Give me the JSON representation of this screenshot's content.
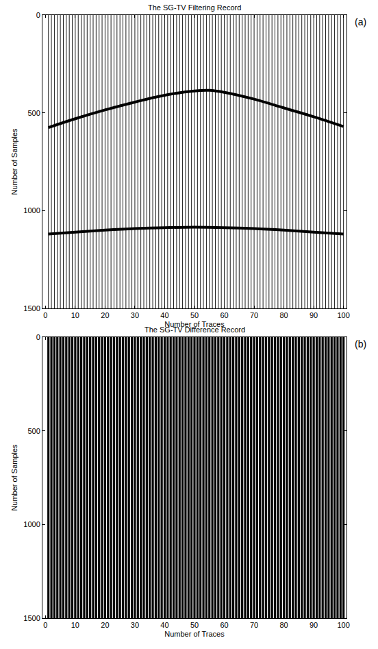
{
  "chart_data": [
    {
      "type": "wiggle",
      "title": "The SG-TV Filtering Record",
      "panel": "(a)",
      "x_label": "Number of Traces",
      "y_label": "Number of Samples",
      "xlim": [
        -1,
        101
      ],
      "xticks": [
        0,
        10,
        20,
        30,
        40,
        50,
        60,
        70,
        80,
        90,
        100
      ],
      "ylim": [
        1500,
        0
      ],
      "yticks": [
        0,
        500,
        1000,
        1500
      ],
      "color": "#000000",
      "traces": [
        1,
        2,
        3,
        4,
        5,
        6,
        7,
        8,
        9,
        10,
        11,
        12,
        13,
        14,
        15,
        16,
        17,
        18,
        19,
        20,
        21,
        22,
        23,
        24,
        25,
        26,
        27,
        28,
        29,
        30,
        31,
        32,
        33,
        34,
        35,
        36,
        37,
        38,
        39,
        40,
        41,
        42,
        43,
        44,
        45,
        46,
        47,
        48,
        49,
        50,
        51,
        52,
        53,
        54,
        55,
        56,
        57,
        58,
        59,
        60,
        61,
        62,
        63,
        64,
        65,
        66,
        67,
        68,
        69,
        70,
        71,
        72,
        73,
        74,
        75,
        76,
        77,
        78,
        79,
        80,
        81,
        82,
        83,
        84,
        85,
        86,
        87,
        88,
        89,
        90,
        91,
        92,
        93,
        94,
        95,
        96,
        97,
        98,
        99,
        100
      ],
      "events": [
        {
          "x": [
            1,
            10,
            20,
            30,
            40,
            50,
            55,
            60,
            70,
            80,
            90,
            100
          ],
          "values": [
            575,
            530,
            485,
            445,
            410,
            388,
            385,
            395,
            430,
            475,
            520,
            570
          ]
        },
        {
          "x": [
            1,
            10,
            20,
            30,
            40,
            50,
            60,
            70,
            80,
            90,
            100
          ],
          "values": [
            1120,
            1110,
            1100,
            1092,
            1087,
            1085,
            1087,
            1092,
            1100,
            1110,
            1120
          ]
        }
      ]
    },
    {
      "type": "wiggle",
      "title": "The SG-TV Difference Record",
      "panel": "(b)",
      "x_label": "Number of Traces",
      "y_label": "Number of Samples",
      "xlim": [
        -1,
        101
      ],
      "xticks": [
        0,
        10,
        20,
        30,
        40,
        50,
        60,
        70,
        80,
        90,
        100
      ],
      "ylim": [
        1500,
        0
      ],
      "yticks": [
        0,
        500,
        1000,
        1500
      ],
      "color": "#000000",
      "traces": [
        1,
        2,
        3,
        4,
        5,
        6,
        7,
        8,
        9,
        10,
        11,
        12,
        13,
        14,
        15,
        16,
        17,
        18,
        19,
        20,
        21,
        22,
        23,
        24,
        25,
        26,
        27,
        28,
        29,
        30,
        31,
        32,
        33,
        34,
        35,
        36,
        37,
        38,
        39,
        40,
        41,
        42,
        43,
        44,
        45,
        46,
        47,
        48,
        49,
        50,
        51,
        52,
        53,
        54,
        55,
        56,
        57,
        58,
        59,
        60,
        61,
        62,
        63,
        64,
        65,
        66,
        67,
        68,
        69,
        70,
        71,
        72,
        73,
        74,
        75,
        76,
        77,
        78,
        79,
        80,
        81,
        82,
        83,
        84,
        85,
        86,
        87,
        88,
        89,
        90,
        91,
        92,
        93,
        94,
        95,
        96,
        97,
        98,
        99,
        100
      ],
      "events": []
    }
  ]
}
